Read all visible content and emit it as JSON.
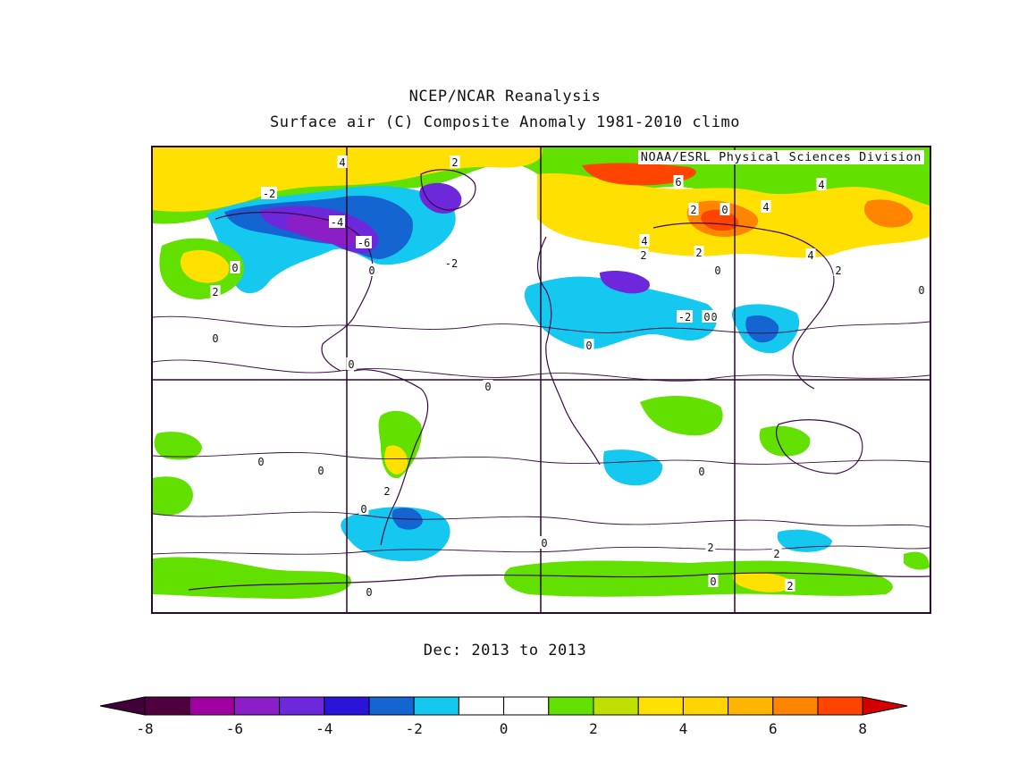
{
  "title_line1": "NCEP/NCAR Reanalysis",
  "title_line2": "Surface air (C) Composite Anomaly 1981-2010 climo",
  "credit": "NOAA/ESRL Physical Sciences Division",
  "subtitle": "Dec: 2013 to 2013",
  "colorbar": {
    "colors": [
      "#50003c",
      "#a000a0",
      "#8c1ec8",
      "#6e28dc",
      "#2a14d8",
      "#1464d2",
      "#14c8f0",
      "#ffffff",
      "#ffffff",
      "#62e000",
      "#c0e000",
      "#ffe000",
      "#ffd400",
      "#ffb400",
      "#ff8400",
      "#ff4400"
    ],
    "low_end_color": "#40003a",
    "high_end_color": "#d20000",
    "tick_labels": [
      "-8",
      "-6",
      "-4",
      "-2",
      "0",
      "2",
      "4",
      "6",
      "8"
    ]
  },
  "contour_labels": [
    "4",
    "2",
    "-2",
    "-4",
    "-6",
    "0",
    "-2",
    "2",
    "0",
    "0",
    "0",
    "0",
    "0",
    "2",
    "0",
    "0",
    "0",
    "0",
    "2",
    "0",
    "0",
    "2",
    "0",
    "0",
    "6",
    "2",
    "0",
    "4",
    "2",
    "4",
    "4",
    "4",
    "2",
    "2",
    "-2",
    "0",
    "2",
    "0",
    "0"
  ]
}
